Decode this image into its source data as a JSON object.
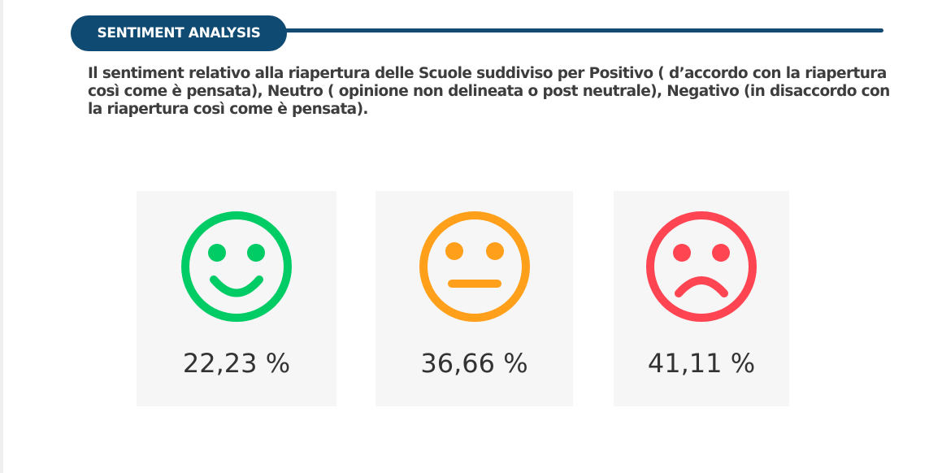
{
  "header": {
    "title": "SENTIMENT ANALYSIS"
  },
  "description": "Il sentiment relativo alla riapertura delle Scuole suddiviso per Positivo ( d’accordo con la riapertura così come è pensata), Neutro ( opinione non delineata o post neutrale), Negativo (in disaccordo con la riapertura così come è pensata).",
  "colors": {
    "header_bg": "#0f4a72",
    "positive": "#00cc66",
    "neutral": "#ff9f1a",
    "negative": "#ff4552"
  },
  "sentiments": [
    {
      "icon": "happy-face-icon",
      "value": "22,23 %"
    },
    {
      "icon": "neutral-face-icon",
      "value": "36,66 %"
    },
    {
      "icon": "sad-face-icon",
      "value": "41,11 %"
    }
  ]
}
